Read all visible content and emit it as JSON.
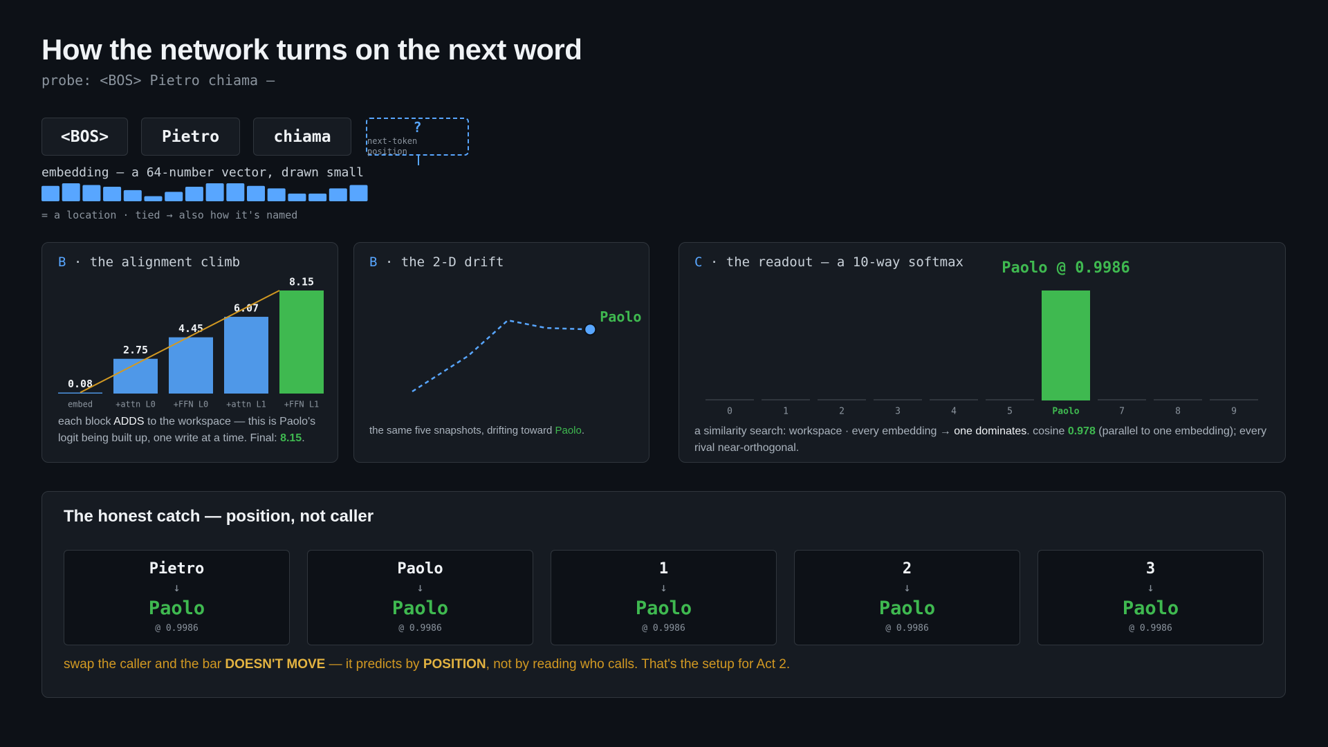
{
  "header": {
    "title": "How the network turns on the next word",
    "probe": "probe: <BOS> Pietro chiama —"
  },
  "tokens": [
    "<BOS>",
    "Pietro",
    "chiama"
  ],
  "next_token": {
    "mark": "?",
    "label": "next-token position"
  },
  "embedding": {
    "label": "embedding — a 64-number vector, drawn small",
    "values": [
      0.9,
      1.05,
      0.95,
      0.85,
      0.65,
      0.3,
      0.55,
      0.85,
      1.05,
      1.05,
      0.9,
      0.75,
      0.45,
      0.45,
      0.75,
      0.95
    ],
    "note": "= a location · tied → also how it's named"
  },
  "climb": {
    "type": "bar",
    "tag": "B",
    "title": "· the alignment climb",
    "categories": [
      "embed",
      "+attn L0",
      "+FFN L0",
      "+attn L1",
      "+FFN L1"
    ],
    "values": [
      0.08,
      2.75,
      4.45,
      6.07,
      8.15
    ],
    "colors": [
      "#4f98e8",
      "#4f98e8",
      "#4f98e8",
      "#4f98e8",
      "#3fb950"
    ],
    "trend_color": "#d29922",
    "caption": [
      "each block ",
      "ADDS",
      " to the workspace — this is Paolo's logit being built up, one write at a time. Final: ",
      "."
    ]
  },
  "drift": {
    "type": "line",
    "tag": "B",
    "title": "· the 2-D drift",
    "x": [
      0,
      1.1,
      1.88,
      2.63,
      3.5
    ],
    "y": [
      0,
      0.7,
      1.4,
      1.25,
      1.22
    ],
    "end_label": "Paolo",
    "caption": [
      "the same five snapshots, drifting toward ",
      "Paolo",
      "."
    ]
  },
  "softmax": {
    "type": "bar",
    "tag": "C",
    "title": "· the readout — a 10-way softmax",
    "categories": [
      "0",
      "1",
      "2",
      "3",
      "4",
      "5",
      "Paolo",
      "7",
      "8",
      "9"
    ],
    "values": [
      0.00015,
      0.0002,
      0.00015,
      0.00015,
      0.00015,
      0.00015,
      0.9986,
      0.00015,
      0.00015,
      0.00015
    ],
    "highlight_label": "Paolo @ 0.9986",
    "caption": [
      "a similarity search: workspace · every embedding → ",
      "one dominates",
      ". cosine ",
      "0.978",
      " (parallel to one embedding); every rival near-orthogonal."
    ]
  },
  "catch": {
    "title": "The honest catch — position, not caller",
    "cards": [
      {
        "caller": "Pietro",
        "arrow": "↓",
        "prediction": "Paolo",
        "score": "@ 0.9986"
      },
      {
        "caller": "Paolo",
        "arrow": "↓",
        "prediction": "Paolo",
        "score": "@ 0.9986"
      },
      {
        "caller": "1",
        "arrow": "↓",
        "prediction": "Paolo",
        "score": "@ 0.9986"
      },
      {
        "caller": "2",
        "arrow": "↓",
        "prediction": "Paolo",
        "score": "@ 0.9986"
      },
      {
        "caller": "3",
        "arrow": "↓",
        "prediction": "Paolo",
        "score": "@ 0.9986"
      }
    ],
    "footer": [
      "swap the caller and the bar ",
      "DOESN'T MOVE",
      " — it predicts by ",
      "POSITION",
      ", not by reading who calls. That's the setup for Act 2."
    ]
  }
}
